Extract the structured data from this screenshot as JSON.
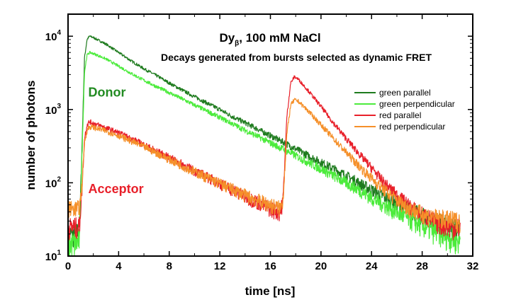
{
  "chart_data": {
    "type": "line",
    "title_main": "Dy",
    "title_sub": "β",
    "title_rest": ",  100 mM NaCl",
    "subtitle": "Decays generated from bursts selected as dynamic FRET",
    "xlabel": "time [ns]",
    "ylabel": "number of photons",
    "xlim": [
      0,
      32
    ],
    "ylim": [
      10,
      20000
    ],
    "yscale": "log",
    "x_ticks": [
      0,
      4,
      8,
      12,
      16,
      20,
      24,
      28,
      32
    ],
    "x_tick_labels": [
      "0",
      "4",
      "8",
      "12",
      "16",
      "20",
      "24",
      "28",
      "32"
    ],
    "y_ticks": [
      10,
      100,
      1000,
      10000
    ],
    "y_tick_base": "10",
    "y_tick_exps": [
      "1",
      "2",
      "3",
      "4"
    ],
    "grid": false,
    "legend_position": "right",
    "annotations": [
      {
        "text": "Donor",
        "color": "#228B22",
        "x": 1.6,
        "y": 1500
      },
      {
        "text": "Acceptor",
        "color": "#E8202A",
        "x": 1.6,
        "y": 72
      }
    ],
    "series": [
      {
        "name": "green parallel",
        "color": "#1E7B1E",
        "x": [
          0,
          0.6,
          0.9,
          1.1,
          1.3,
          1.5,
          1.7,
          2,
          3,
          4,
          5,
          6,
          7,
          8,
          9,
          10,
          11,
          12,
          13,
          14,
          15,
          16,
          17,
          18,
          19,
          20,
          21,
          22,
          23,
          24,
          25,
          26,
          27,
          28,
          29,
          30,
          31
        ],
        "y": [
          20,
          20,
          22,
          300,
          5000,
          9000,
          10000,
          9600,
          7800,
          6000,
          4600,
          3600,
          2900,
          2300,
          1850,
          1500,
          1220,
          1000,
          800,
          660,
          540,
          440,
          360,
          290,
          235,
          190,
          155,
          125,
          100,
          80,
          65,
          53,
          43,
          36,
          30,
          27,
          24
        ]
      },
      {
        "name": "green perpendicular",
        "color": "#4CEB3C",
        "x": [
          0,
          0.6,
          0.9,
          1.1,
          1.3,
          1.5,
          1.7,
          2,
          3,
          4,
          5,
          6,
          7,
          8,
          9,
          10,
          11,
          12,
          13,
          14,
          15,
          16,
          17,
          18,
          19,
          20,
          21,
          22,
          23,
          24,
          25,
          26,
          27,
          28,
          29,
          30,
          31
        ],
        "y": [
          15,
          15,
          17,
          220,
          3200,
          5500,
          6000,
          5800,
          4900,
          3900,
          3100,
          2500,
          2050,
          1700,
          1400,
          1150,
          950,
          780,
          640,
          520,
          430,
          350,
          290,
          235,
          190,
          155,
          125,
          100,
          80,
          62,
          50,
          40,
          32,
          26,
          22,
          19,
          16
        ]
      },
      {
        "name": "red parallel",
        "color": "#E8202A",
        "x": [
          0,
          0.6,
          0.9,
          1.1,
          1.3,
          1.5,
          1.7,
          2,
          3,
          4,
          5,
          6,
          7,
          8,
          9,
          10,
          11,
          12,
          13,
          14,
          15,
          16,
          16.8,
          17.0,
          17.3,
          17.6,
          17.9,
          18.2,
          19,
          20,
          21,
          22,
          23,
          24,
          25,
          26,
          27,
          28,
          29,
          30,
          31
        ],
        "y": [
          25,
          25,
          26,
          80,
          400,
          620,
          680,
          650,
          560,
          480,
          400,
          330,
          270,
          220,
          180,
          145,
          120,
          98,
          80,
          65,
          55,
          45,
          40,
          60,
          800,
          2300,
          2800,
          2600,
          1800,
          1100,
          650,
          400,
          250,
          160,
          100,
          68,
          48,
          37,
          30,
          26,
          24
        ]
      },
      {
        "name": "red perpendicular",
        "color": "#F5902A",
        "x": [
          0,
          0.6,
          0.9,
          1.1,
          1.3,
          1.5,
          1.7,
          2,
          3,
          4,
          5,
          6,
          7,
          8,
          9,
          10,
          11,
          12,
          13,
          14,
          15,
          16,
          16.8,
          17.0,
          17.3,
          17.6,
          17.9,
          18.2,
          19,
          20,
          21,
          22,
          23,
          24,
          25,
          26,
          27,
          28,
          29,
          30,
          31
        ],
        "y": [
          45,
          45,
          46,
          90,
          350,
          520,
          580,
          570,
          510,
          440,
          370,
          310,
          255,
          210,
          172,
          142,
          118,
          98,
          82,
          68,
          58,
          50,
          45,
          60,
          450,
          1150,
          1350,
          1300,
          950,
          620,
          400,
          260,
          170,
          115,
          80,
          58,
          45,
          38,
          34,
          32,
          30
        ]
      }
    ]
  }
}
